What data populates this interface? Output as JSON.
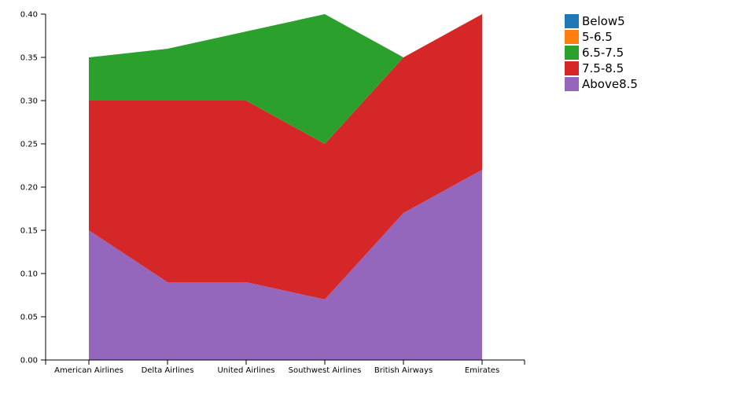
{
  "chart_data": {
    "type": "area",
    "stacked": true,
    "categories": [
      "American Airlines",
      "Delta Airlines",
      "United Airlines",
      "Southwest Airlines",
      "British Airways",
      "Emirates"
    ],
    "series": [
      {
        "name": "Below5",
        "color": "#1f77b4",
        "values": [
          0,
          0,
          0,
          0,
          0,
          0
        ]
      },
      {
        "name": "5-6.5",
        "color": "#ff7f0e",
        "values": [
          0,
          0,
          0,
          0,
          0,
          0
        ]
      },
      {
        "name": "6.5-7.5",
        "color": "#2ca02c",
        "values": [
          0.05,
          0.06,
          0.08,
          0.15,
          0.0,
          0.0
        ]
      },
      {
        "name": "7.5-8.5",
        "color": "#d62728",
        "values": [
          0.15,
          0.21,
          0.21,
          0.18,
          0.18,
          0.18
        ]
      },
      {
        "name": "Above8.5",
        "color": "#9467bd",
        "values": [
          0.15,
          0.09,
          0.09,
          0.07,
          0.17,
          0.22
        ]
      }
    ],
    "ylim": [
      0,
      0.4
    ],
    "yticks": [
      "0.00",
      "0.05",
      "0.10",
      "0.15",
      "0.20",
      "0.25",
      "0.30",
      "0.35",
      "0.40"
    ],
    "grid": false,
    "legend_position": "top-right"
  }
}
